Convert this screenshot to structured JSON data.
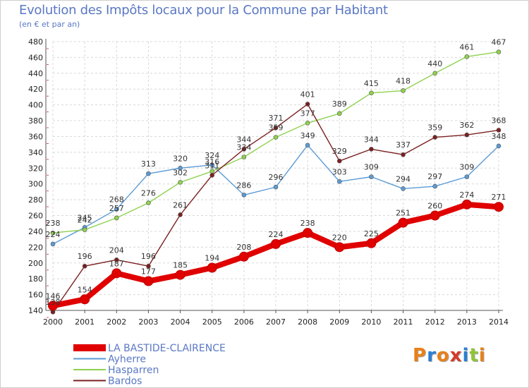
{
  "chart_data": {
    "type": "line",
    "title": "Evolution des Impôts locaux pour la Commune par Habitant",
    "subtitle": "(en € et par an)",
    "xlabel": "",
    "ylabel": "",
    "x": [
      "2000",
      "2001",
      "2002",
      "2003",
      "2004",
      "2005",
      "2006",
      "2007",
      "2008",
      "2009",
      "2010",
      "2011",
      "2012",
      "2013",
      "2014"
    ],
    "ylim": [
      140,
      480
    ],
    "yticks": [
      140,
      160,
      180,
      200,
      220,
      240,
      260,
      280,
      300,
      320,
      340,
      360,
      380,
      400,
      420,
      440,
      460,
      480
    ],
    "grid": true,
    "legend_position": "bottom-left",
    "series": [
      {
        "name": "LA BASTIDE-CLAIRENCE",
        "color": "#e00000",
        "width": "thick",
        "values": [
          146,
          154,
          187,
          177,
          185,
          194,
          208,
          224,
          238,
          220,
          225,
          251,
          260,
          274,
          271
        ]
      },
      {
        "name": "Ayherre",
        "color": "#5b9bd5",
        "width": "thin",
        "values": [
          224,
          245,
          268,
          313,
          320,
          324,
          286,
          296,
          349,
          303,
          309,
          294,
          297,
          309,
          348
        ]
      },
      {
        "name": "Hasparren",
        "color": "#8fd14f",
        "width": "thin",
        "values": [
          238,
          242,
          257,
          276,
          302,
          316,
          334,
          359,
          377,
          389,
          415,
          418,
          440,
          461,
          467
        ]
      },
      {
        "name": "Bardos",
        "color": "#7b2020",
        "width": "thin",
        "values": [
          138,
          196,
          204,
          196,
          261,
          311,
          344,
          371,
          401,
          329,
          344,
          337,
          359,
          362,
          368
        ]
      }
    ],
    "data_labels": [
      [
        "146",
        "154",
        "187",
        "177",
        "185",
        "194",
        "208",
        "224",
        "238",
        "220",
        "225",
        "251",
        "260",
        "274",
        "271"
      ],
      [
        "224",
        "245",
        "268",
        "313",
        "320",
        "324",
        "286",
        "296",
        "349",
        "303",
        "309",
        "294",
        "297",
        "309",
        "348"
      ],
      [
        "238",
        "242",
        "257",
        "276",
        "302",
        "316",
        "334",
        "359",
        "377",
        "389",
        "415",
        "418",
        "440",
        "461",
        "467"
      ],
      [
        "138",
        "196",
        "204",
        "196",
        "261",
        "311",
        "344",
        "371",
        "401",
        "329",
        "344",
        "337",
        "359",
        "362",
        "368"
      ]
    ]
  },
  "logo": {
    "text": "Proxiti",
    "colors": [
      "#e8801a",
      "#2a7fd6",
      "#e8801a",
      "#d63a2a",
      "#2a7fd6",
      "#8fc43a",
      "#e8801a"
    ]
  }
}
